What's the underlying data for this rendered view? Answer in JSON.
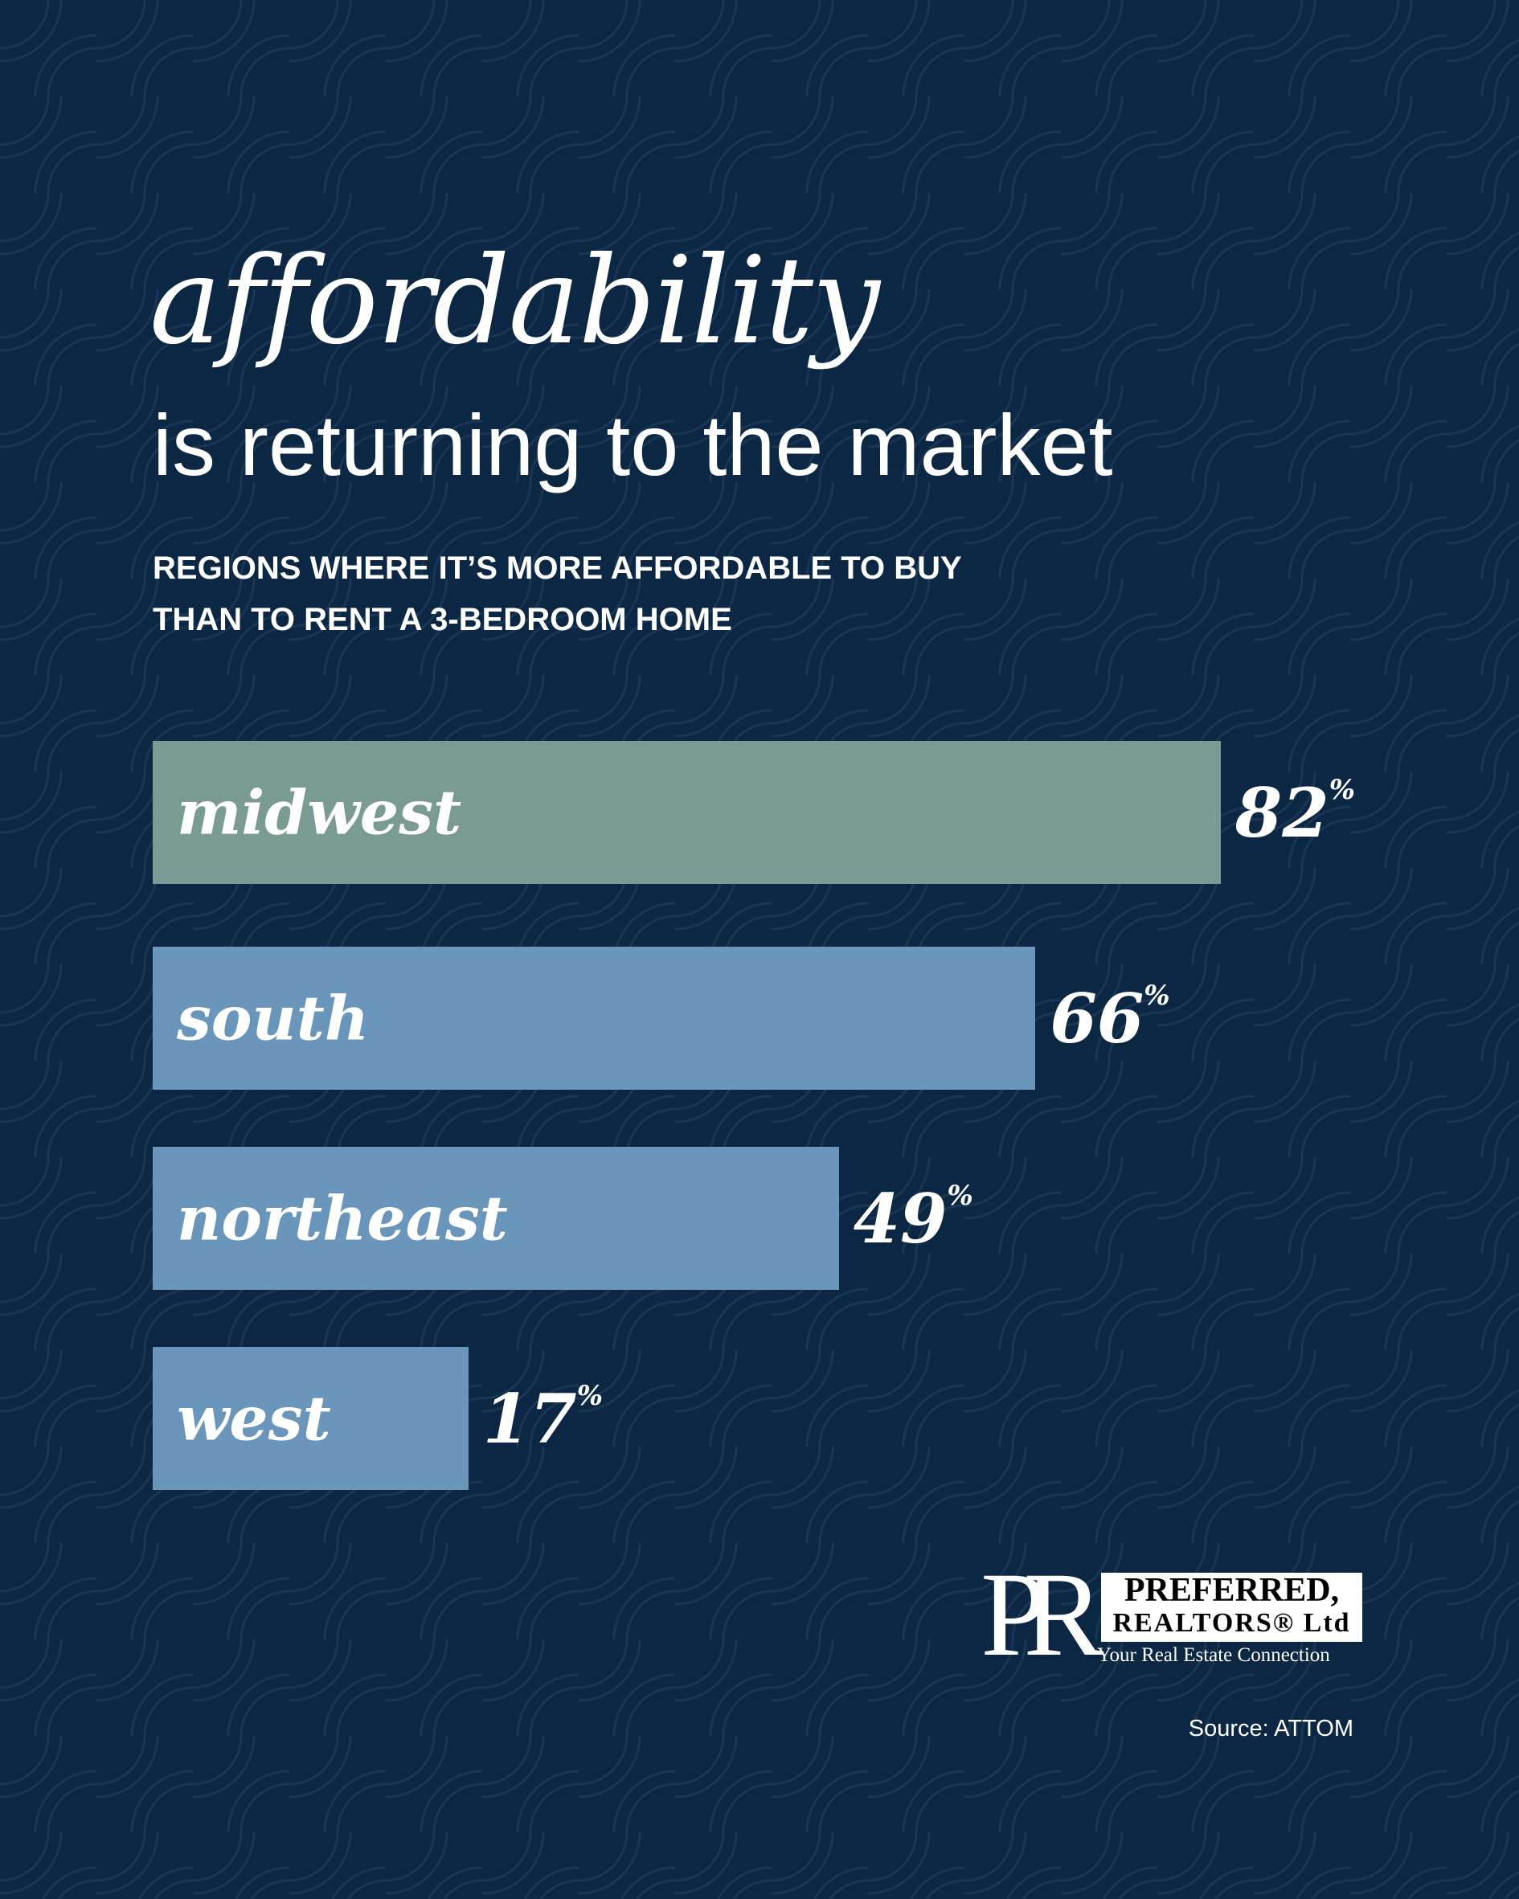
{
  "title": {
    "line1": "affordability",
    "line2": "is returning to the market"
  },
  "subtitle": {
    "line1": "REGIONS WHERE IT’S MORE AFFORDABLE TO BUY",
    "line2": "THAN TO RENT A 3-BEDROOM HOME"
  },
  "chart_data": {
    "type": "bar",
    "orientation": "horizontal",
    "title": "Regions where it's more affordable to buy than to rent a 3-bedroom home",
    "categories": [
      "midwest",
      "south",
      "northeast",
      "west"
    ],
    "values": [
      82,
      66,
      49,
      17
    ],
    "value_suffix": "%",
    "colors": [
      "#7a9b94",
      "#6b96bb",
      "#6b96bb",
      "#6b96bb"
    ],
    "xlabel": "",
    "ylabel": "",
    "grid": false
  },
  "logo": {
    "monogram": "PR",
    "line1": "PREFERRED,",
    "line2": "REALTORS® Ltd",
    "tagline": "Your Real Estate Connection"
  },
  "source": "Source: ATTOM",
  "colors": {
    "background": "#0c2744",
    "text": "#ffffff"
  }
}
